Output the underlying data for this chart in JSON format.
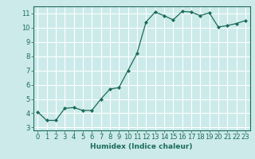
{
  "x": [
    0,
    1,
    2,
    3,
    4,
    5,
    6,
    7,
    8,
    9,
    10,
    11,
    12,
    13,
    14,
    15,
    16,
    17,
    18,
    19,
    20,
    21,
    22,
    23
  ],
  "y": [
    4.1,
    3.5,
    3.5,
    4.35,
    4.4,
    4.2,
    4.2,
    5.0,
    5.7,
    5.8,
    7.0,
    8.2,
    10.4,
    11.1,
    10.85,
    10.55,
    11.15,
    11.1,
    10.85,
    11.05,
    10.05,
    10.15,
    10.3,
    10.5
  ],
  "line_color": "#1a6b5a",
  "marker": "D",
  "markersize": 2.0,
  "linewidth": 0.9,
  "bg_color": "#cceaea",
  "grid_color": "#ffffff",
  "xlabel": "Humidex (Indice chaleur)",
  "xlabel_fontsize": 6.5,
  "tick_fontsize": 6.0,
  "xlim": [
    -0.5,
    23.5
  ],
  "ylim": [
    2.8,
    11.5
  ],
  "yticks": [
    3,
    4,
    5,
    6,
    7,
    8,
    9,
    10,
    11
  ],
  "xticks": [
    0,
    1,
    2,
    3,
    4,
    5,
    6,
    7,
    8,
    9,
    10,
    11,
    12,
    13,
    14,
    15,
    16,
    17,
    18,
    19,
    20,
    21,
    22,
    23
  ]
}
